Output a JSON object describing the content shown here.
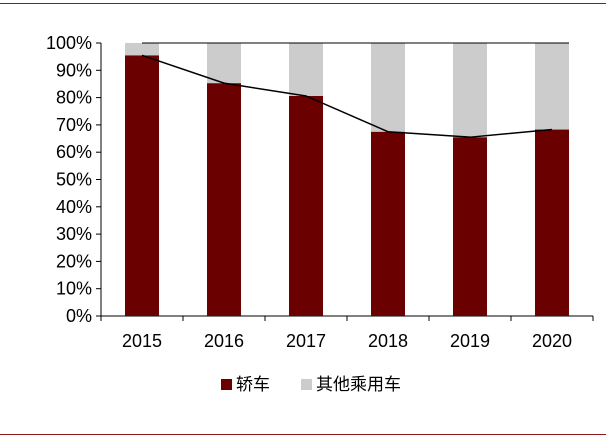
{
  "chart_data": {
    "type": "bar",
    "stacked": true,
    "categories": [
      "2015",
      "2016",
      "2017",
      "2018",
      "2019",
      "2020"
    ],
    "series": [
      {
        "name": "轿车",
        "color": "#6b0000",
        "values": [
          95.5,
          85.3,
          80.6,
          67.5,
          65.5,
          68.3
        ]
      },
      {
        "name": "其他乘用车",
        "color": "#cccccc",
        "values": [
          4.5,
          14.7,
          19.4,
          32.5,
          34.5,
          31.7
        ]
      }
    ],
    "line": {
      "follows": "轿车",
      "color": "#000000"
    },
    "ylim": [
      0,
      100
    ],
    "yticks": [
      "0%",
      "10%",
      "20%",
      "30%",
      "40%",
      "50%",
      "60%",
      "70%",
      "80%",
      "90%",
      "100%"
    ],
    "grid": false,
    "legend": "bottom"
  }
}
